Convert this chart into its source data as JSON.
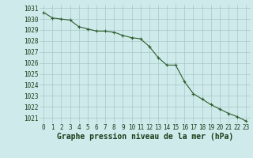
{
  "x": [
    0,
    1,
    2,
    3,
    4,
    5,
    6,
    7,
    8,
    9,
    10,
    11,
    12,
    13,
    14,
    15,
    16,
    17,
    18,
    19,
    20,
    21,
    22,
    23
  ],
  "y": [
    1030.6,
    1030.1,
    1030.0,
    1029.9,
    1029.3,
    1029.1,
    1028.9,
    1028.9,
    1028.8,
    1028.5,
    1028.3,
    1028.2,
    1027.5,
    1026.5,
    1025.8,
    1025.8,
    1024.3,
    1023.2,
    1022.7,
    1022.2,
    1021.8,
    1021.4,
    1021.1,
    1020.7
  ],
  "ylim": [
    1020.5,
    1031.3
  ],
  "yticks": [
    1021,
    1022,
    1023,
    1024,
    1025,
    1026,
    1027,
    1028,
    1029,
    1030,
    1031
  ],
  "xticks": [
    0,
    1,
    2,
    3,
    4,
    5,
    6,
    7,
    8,
    9,
    10,
    11,
    12,
    13,
    14,
    15,
    16,
    17,
    18,
    19,
    20,
    21,
    22,
    23
  ],
  "line_color": "#2d5e2d",
  "marker": "+",
  "marker_size": 3,
  "bg_color": "#ceeaea",
  "grid_color": "#a8c8c8",
  "xlabel": "Graphe pression niveau de la mer (hPa)",
  "xlabel_color": "#1a3d1a",
  "tick_label_color": "#1a3d1a",
  "tick_label_fontsize": 5.5,
  "xlabel_fontsize": 7.0,
  "xlabel_fontweight": "bold"
}
